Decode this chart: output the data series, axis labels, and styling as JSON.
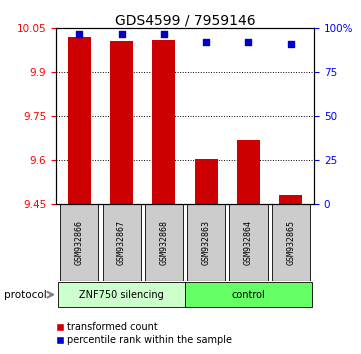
{
  "title": "GDS4599 / 7959146",
  "samples": [
    "GSM932866",
    "GSM932867",
    "GSM932868",
    "GSM932863",
    "GSM932864",
    "GSM932865"
  ],
  "red_values": [
    10.02,
    10.005,
    10.01,
    9.603,
    9.668,
    9.478
  ],
  "blue_values": [
    97,
    97,
    97,
    92,
    92,
    91
  ],
  "baseline": 9.45,
  "ylim_left": [
    9.45,
    10.05
  ],
  "ylim_right": [
    0,
    100
  ],
  "yticks_left": [
    9.45,
    9.6,
    9.75,
    9.9,
    10.05
  ],
  "yticks_right": [
    0,
    25,
    50,
    75,
    100
  ],
  "ytick_labels_right": [
    "0",
    "25",
    "50",
    "75",
    "100%"
  ],
  "group1_label": "ZNF750 silencing",
  "group2_label": "control",
  "protocol_label": "protocol",
  "legend_red": "transformed count",
  "legend_blue": "percentile rank within the sample",
  "bar_color": "#cc0000",
  "dot_color": "#0000cc",
  "group1_color": "#ccffcc",
  "group2_color": "#66ff66",
  "sample_bg_color": "#cccccc",
  "bar_width": 0.55,
  "title_fontsize": 10
}
